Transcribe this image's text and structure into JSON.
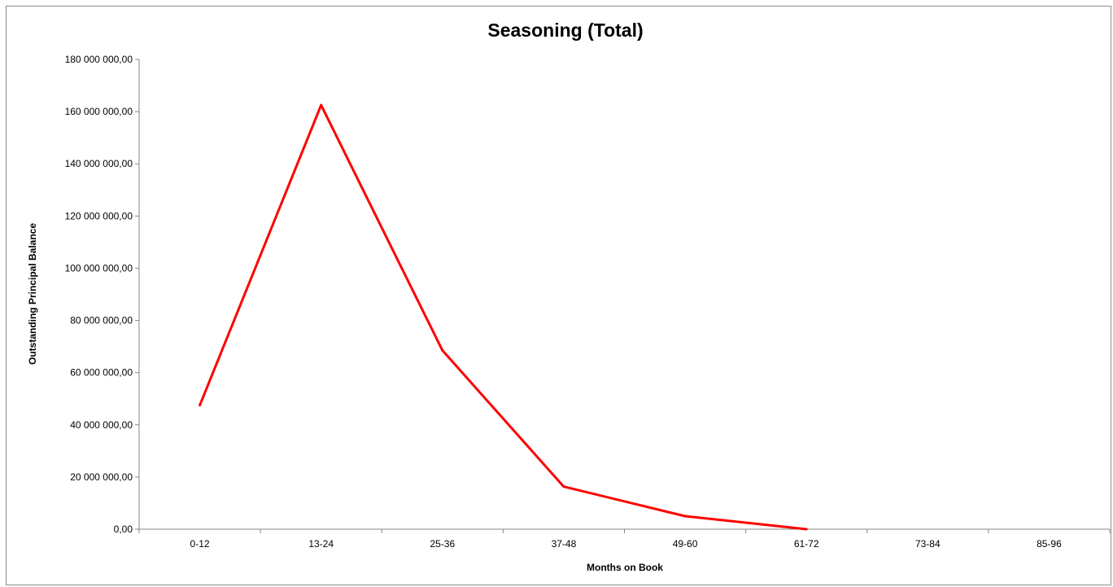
{
  "chart_data": {
    "type": "line",
    "title": "Seasoning (Total)",
    "xlabel": "Months on Book",
    "ylabel": "Outstanding Principal Balance",
    "categories": [
      "0-12",
      "13-24",
      "25-36",
      "37-48",
      "49-60",
      "61-72",
      "73-84",
      "85-96"
    ],
    "series": [
      {
        "values": [
          47500000,
          162500000,
          68500000,
          16300000,
          5000000,
          0,
          null,
          null
        ],
        "color": "#ff0000"
      }
    ],
    "ylim": [
      0,
      180000000
    ],
    "yticks": [
      0,
      20000000,
      40000000,
      60000000,
      80000000,
      100000000,
      120000000,
      140000000,
      160000000,
      180000000
    ],
    "ytick_labels": [
      "0,00",
      "20 000 000,00",
      "40 000 000,00",
      "60 000 000,00",
      "80 000 000,00",
      "100 000 000,00",
      "120 000 000,00",
      "140 000 000,00",
      "160 000 000,00",
      "180 000 000,00"
    ],
    "grid": false,
    "legend": "none"
  }
}
